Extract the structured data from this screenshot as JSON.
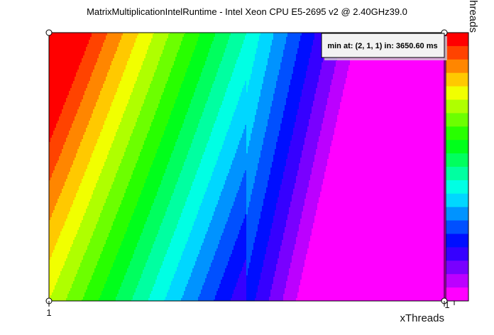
{
  "chart_data": {
    "type": "heatmap",
    "title": "MatrixMultiplicationIntelRuntime - Intel Xeon CPU E5-2695 v2 @ 2.40GHz39.0",
    "xlabel": "xThreads",
    "ylabel": "yThreads",
    "x_ticks": [
      "1",
      "1"
    ],
    "annotation": "min at: (2, 1, 1) in: 3650.60 ms",
    "colormap": "rainbow",
    "colorbar_levels": 20,
    "legend_placement": "right",
    "grid": false
  }
}
